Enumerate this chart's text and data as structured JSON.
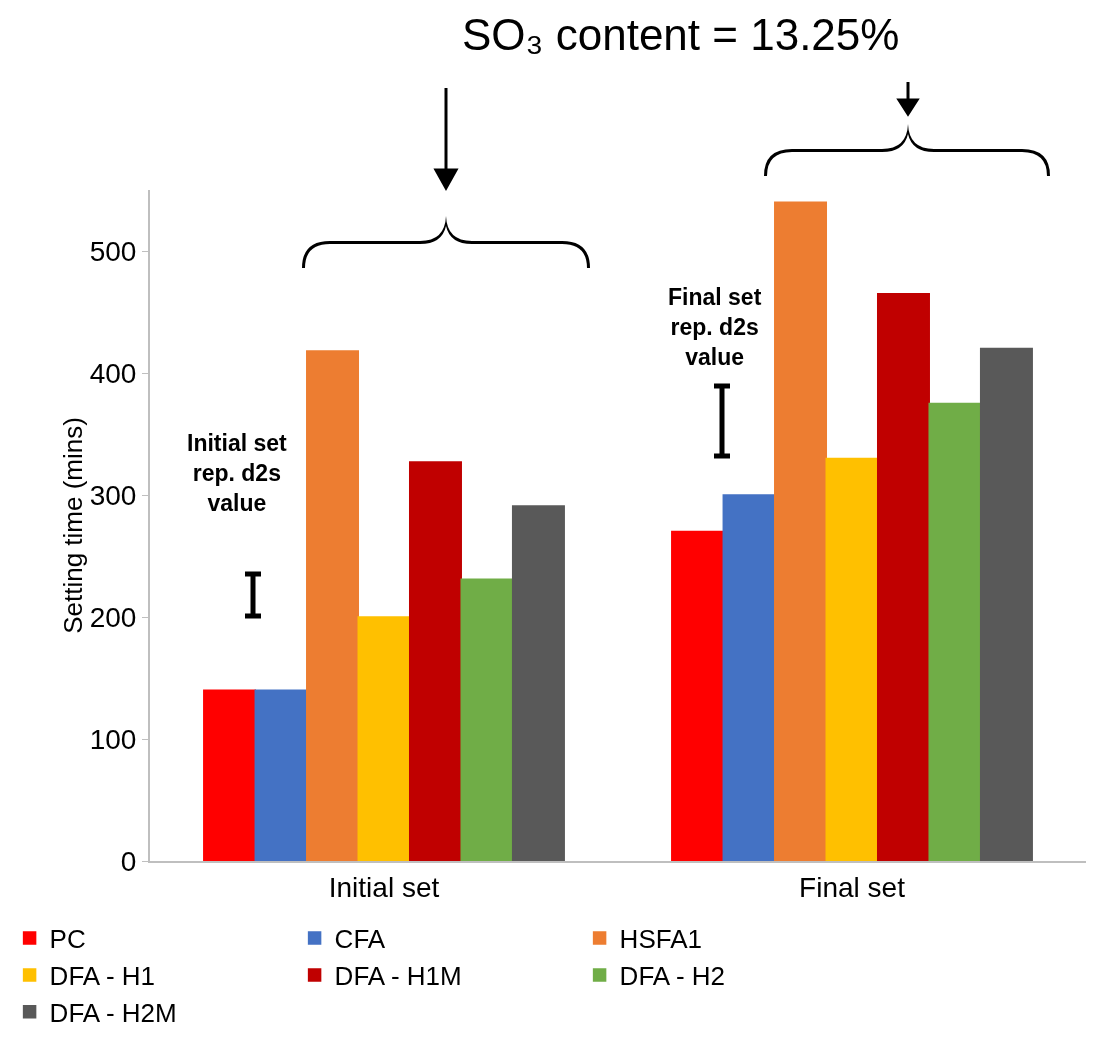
{
  "chart_data": {
    "type": "bar",
    "categories": [
      "Initial set",
      "Final set"
    ],
    "ylabel": "Setting time (mins)",
    "ylim": [
      0,
      550
    ],
    "yticks": [
      0,
      100,
      200,
      300,
      400,
      500
    ],
    "grid": false,
    "legend": "bottom",
    "annotations": [
      "SO₃ content = 13.25%",
      "Initial set rep. d2s value",
      "Final set rep. d2s value"
    ],
    "series": [
      {
        "name": "PC",
        "color": "#ff0000",
        "values": [
          140,
          270
        ]
      },
      {
        "name": "CFA",
        "color": "#4472c4",
        "values": [
          140,
          300
        ]
      },
      {
        "name": "HSFA1",
        "color": "#ed7d31",
        "values": [
          418,
          540
        ]
      },
      {
        "name": "DFA - H1",
        "color": "#ffc000",
        "values": [
          200,
          330
        ]
      },
      {
        "name": "DFA - H1M",
        "color": "#c00000",
        "values": [
          327,
          465
        ]
      },
      {
        "name": "DFA - H2",
        "color": "#70ad47",
        "values": [
          231,
          375
        ]
      },
      {
        "name": "DFA - H2M",
        "color": "#595959",
        "values": [
          291,
          420
        ]
      }
    ]
  }
}
